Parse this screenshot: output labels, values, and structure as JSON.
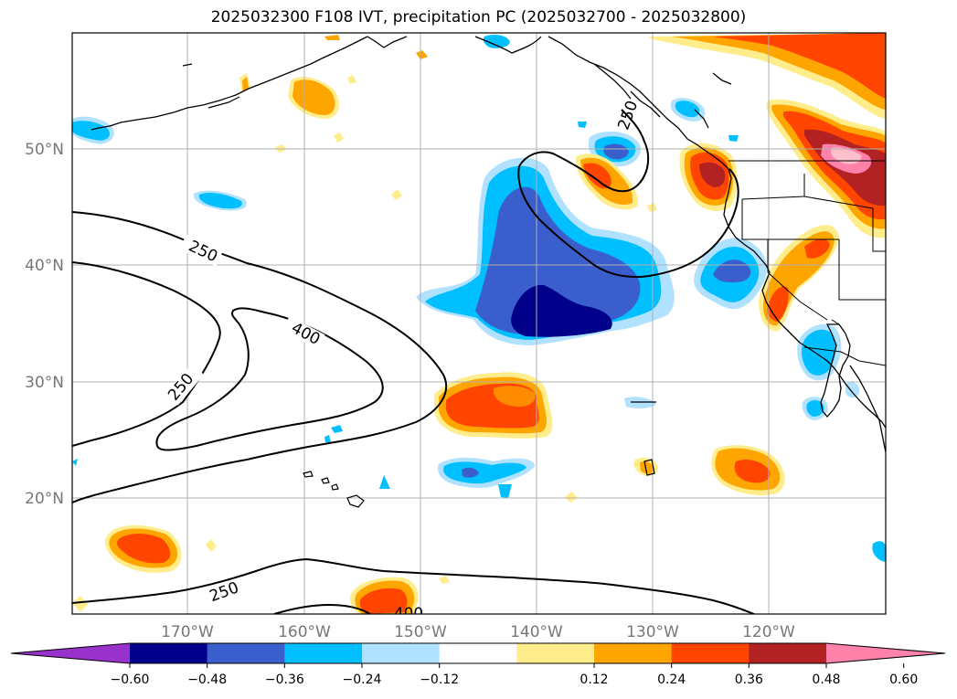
{
  "title": "2025032300 F108 IVT, precipitation PC (2025032700 - 2025032800)",
  "map": {
    "lat_labels": [
      "50°N",
      "40°N",
      "30°N",
      "20°N"
    ],
    "lon_labels": [
      "170°W",
      "160°W",
      "150°W",
      "140°W",
      "130°W",
      "120°W"
    ],
    "contour_labels": [
      "250",
      "400",
      "250",
      "250",
      "400",
      "250"
    ]
  },
  "colorbar": {
    "ticks": [
      "−0.60",
      "−0.48",
      "−0.36",
      "−0.24",
      "−0.12",
      "0.12",
      "0.24",
      "0.36",
      "0.48",
      "0.60"
    ],
    "colors": [
      "#9932cc",
      "#00008b",
      "#3a5fcd",
      "#00bfff",
      "#b0e2ff",
      "#ffffff",
      "#ffec8b",
      "#ffa500",
      "#ff4500",
      "#b22222",
      "#ff82ab"
    ]
  }
}
